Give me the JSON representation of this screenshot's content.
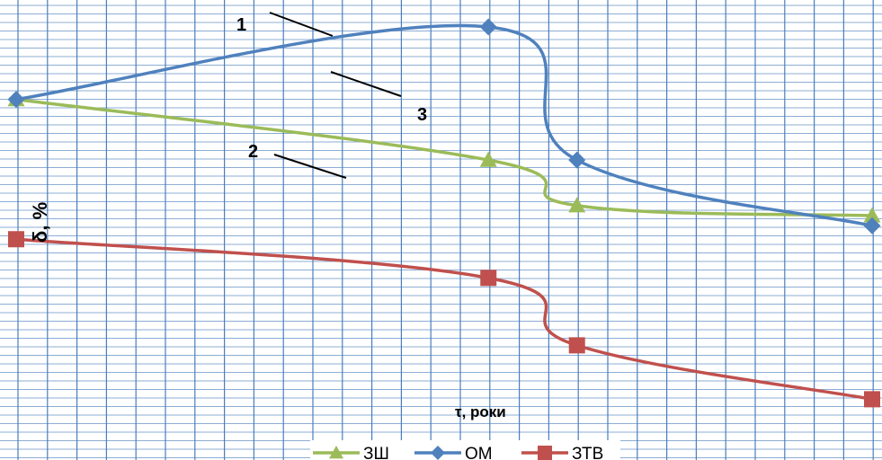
{
  "chart_data": {
    "type": "line",
    "title": "",
    "xlabel": "τ, роки",
    "ylabel": "δ, %",
    "grid": true,
    "legend_position": "bottom",
    "x": [
      0,
      8,
      9.5,
      14.5
    ],
    "series": [
      {
        "name": "ЗШ",
        "marker": "triangle",
        "values": [
          9.05,
          7.25,
          5.9,
          5.6
        ]
      },
      {
        "name": "ОМ",
        "marker": "diamond",
        "values": [
          9.05,
          11.2,
          7.25,
          5.3
        ]
      },
      {
        "name": "ЗТВ",
        "marker": "square",
        "values": [
          4.9,
          3.75,
          1.75,
          0.15
        ]
      }
    ],
    "annotations": [
      {
        "text": "1",
        "series": "ОМ"
      },
      {
        "text": "2",
        "series": "ЗШ"
      },
      {
        "text": "3",
        "series": "ЗТВ"
      }
    ],
    "colors": {
      "ЗШ": "#9bbb59",
      "ОМ": "#4f81bd",
      "ЗТВ": "#c0504d",
      "grid": "#4a7ebb"
    }
  }
}
